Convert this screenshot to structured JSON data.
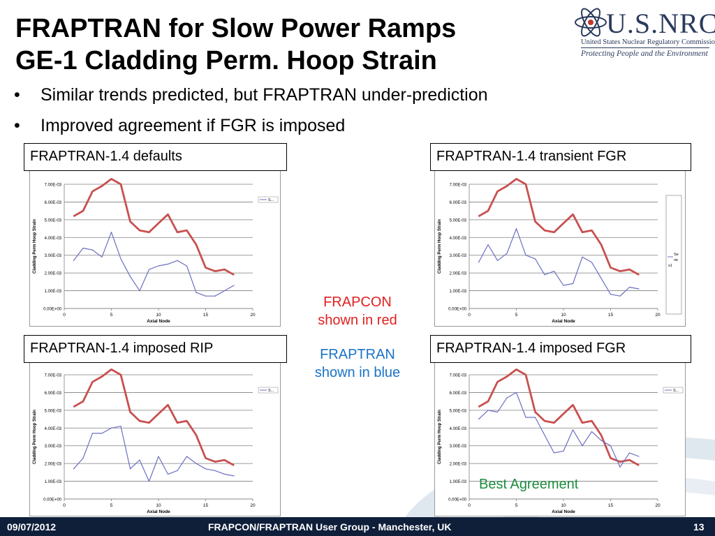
{
  "slide": {
    "title_line1": "FRAPTRAN for Slow Power Ramps",
    "title_line2": "GE-1 Cladding Perm. Hoop Strain",
    "bullets": [
      "Similar trends predicted, but FRAPTRAN under-prediction",
      "Improved agreement if FGR is imposed"
    ],
    "logo": {
      "name": "U.S.NRC",
      "line1": "United States Nuclear Regulatory Commission",
      "line2": "Protecting People and the Environment"
    },
    "notes": {
      "frapcon_1": "FRAPCON",
      "frapcon_2": "shown in red",
      "fraptran_1": "FRAPTRAN",
      "fraptran_2": "shown in blue"
    },
    "best_agreement": "Best Agreement",
    "footer": {
      "date": "09/07/2012",
      "center": "FRAPCON/FRAPTRAN User Group - Manchester, UK",
      "page": "13"
    },
    "colors": {
      "frapcon": "#c8504f",
      "fraptran": "#6a6fc0",
      "footer_bg": "#0f1f3a",
      "best": "#1d8c3f",
      "note_red": "#e02020",
      "note_blue": "#1a73c8"
    }
  },
  "chart_data": [
    {
      "panel_label": "FRAPTRAN-1.4 defaults",
      "type": "line",
      "xlabel": "Axial Node",
      "ylabel": "Cladding Perm Hoop Strain",
      "xlim": [
        0,
        20
      ],
      "ylim": [
        0,
        0.007
      ],
      "xticks": [
        "0",
        "5",
        "10",
        "15",
        "20"
      ],
      "yticks": [
        "0.00E+00",
        "1.00E-03",
        "2.00E-03",
        "3.00E-03",
        "4.00E-03",
        "5.00E-03",
        "6.00E-03",
        "7.00E-03"
      ],
      "legend_text": "S...",
      "x": [
        1,
        2,
        3,
        4,
        5,
        6,
        7,
        8,
        9,
        10,
        11,
        12,
        13,
        14,
        15,
        16,
        17,
        18
      ],
      "series": [
        {
          "values": [
            0.0052,
            0.0055,
            0.0066,
            0.0069,
            0.0073,
            0.007,
            0.0049,
            0.0044,
            0.0043,
            0.0048,
            0.0053,
            0.0043,
            0.0044,
            0.0036,
            0.0023,
            0.0021,
            0.0022,
            0.0019
          ]
        },
        {
          "values": [
            0.0027,
            0.0034,
            0.0033,
            0.0029,
            0.0043,
            0.0028,
            0.0018,
            0.001,
            0.0022,
            0.0024,
            0.0025,
            0.0027,
            0.0024,
            0.0009,
            0.0007,
            0.0007,
            0.001,
            0.0013
          ]
        }
      ]
    },
    {
      "panel_label": "FRAPTRAN-1.4 transient FGR",
      "type": "line",
      "xlabel": "Axial Node",
      "ylabel": "Cladding Perm Hoop Strain",
      "xlim": [
        0,
        20
      ],
      "ylim": [
        0,
        0.007
      ],
      "xticks": [
        "0",
        "5",
        "10",
        "15",
        "20"
      ],
      "yticks": [
        "0.00E+00",
        "1.00E-03",
        "2.00E-03",
        "3.00E-03",
        "4.00E-03",
        "5.00E-03",
        "6.00E-03",
        "7.00E-03"
      ],
      "legend_text": "Se rie s1",
      "x": [
        1,
        2,
        3,
        4,
        5,
        6,
        7,
        8,
        9,
        10,
        11,
        12,
        13,
        14,
        15,
        16,
        17,
        18
      ],
      "series": [
        {
          "values": [
            0.0052,
            0.0055,
            0.0066,
            0.0069,
            0.0073,
            0.007,
            0.0049,
            0.0044,
            0.0043,
            0.0048,
            0.0053,
            0.0043,
            0.0044,
            0.0036,
            0.0023,
            0.0021,
            0.0022,
            0.0019
          ]
        },
        {
          "values": [
            0.0026,
            0.0036,
            0.0027,
            0.0031,
            0.0045,
            0.003,
            0.0028,
            0.0019,
            0.0021,
            0.0013,
            0.0014,
            0.0029,
            0.0026,
            0.0017,
            0.0008,
            0.0007,
            0.0012,
            0.0011
          ]
        }
      ]
    },
    {
      "panel_label": "FRAPTRAN-1.4 imposed RIP",
      "type": "line",
      "xlabel": "Axial Node",
      "ylabel": "Cladding Perm Hoop Strain",
      "xlim": [
        0,
        20
      ],
      "ylim": [
        0,
        0.007
      ],
      "xticks": [
        "0",
        "5",
        "10",
        "15",
        "20"
      ],
      "yticks": [
        "0.00E+00",
        "1.00E-03",
        "2.00E-03",
        "3.00E-03",
        "4.00E-03",
        "5.00E-03",
        "6.00E-03",
        "7.00E-03"
      ],
      "legend_text": "S...",
      "x": [
        1,
        2,
        3,
        4,
        5,
        6,
        7,
        8,
        9,
        10,
        11,
        12,
        13,
        14,
        15,
        16,
        17,
        18
      ],
      "series": [
        {
          "values": [
            0.0052,
            0.0055,
            0.0066,
            0.0069,
            0.0073,
            0.007,
            0.0049,
            0.0044,
            0.0043,
            0.0048,
            0.0053,
            0.0043,
            0.0044,
            0.0036,
            0.0023,
            0.0021,
            0.0022,
            0.0019
          ]
        },
        {
          "values": [
            0.0017,
            0.0023,
            0.0037,
            0.0037,
            0.004,
            0.0041,
            0.0017,
            0.0022,
            0.001,
            0.0024,
            0.0014,
            0.0016,
            0.0024,
            0.002,
            0.0017,
            0.0016,
            0.0014,
            0.0013
          ]
        }
      ]
    },
    {
      "panel_label": "FRAPTRAN-1.4 imposed FGR",
      "type": "line",
      "xlabel": "Axial Node",
      "ylabel": "Cladding Perm Hoop Strain",
      "xlim": [
        0,
        20
      ],
      "ylim": [
        0,
        0.007
      ],
      "xticks": [
        "0",
        "5",
        "10",
        "15",
        "20"
      ],
      "yticks": [
        "0.00E+00",
        "1.00E-03",
        "2.00E-03",
        "3.00E-03",
        "4.00E-03",
        "5.00E-03",
        "6.00E-03",
        "7.00E-03"
      ],
      "legend_text": "S...",
      "x": [
        1,
        2,
        3,
        4,
        5,
        6,
        7,
        8,
        9,
        10,
        11,
        12,
        13,
        14,
        15,
        16,
        17,
        18
      ],
      "series": [
        {
          "values": [
            0.0052,
            0.0055,
            0.0066,
            0.0069,
            0.0073,
            0.007,
            0.0049,
            0.0044,
            0.0043,
            0.0048,
            0.0053,
            0.0043,
            0.0044,
            0.0036,
            0.0023,
            0.0021,
            0.0022,
            0.0019
          ]
        },
        {
          "values": [
            0.0045,
            0.005,
            0.0049,
            0.0057,
            0.006,
            0.0046,
            0.0046,
            0.0036,
            0.0026,
            0.0027,
            0.0039,
            0.003,
            0.0038,
            0.0033,
            0.003,
            0.0018,
            0.0026,
            0.0024
          ]
        }
      ]
    }
  ]
}
